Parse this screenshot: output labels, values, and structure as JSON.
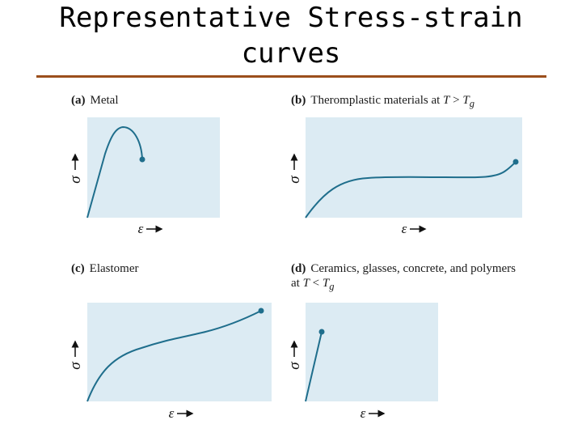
{
  "slide": {
    "title": "Representative Stress-strain\ncurves"
  },
  "panels": [
    {
      "letter": "(a)",
      "label": "Metal",
      "y_axis_symbol": "σ",
      "x_axis_symbol": "ε"
    },
    {
      "letter": "(b)",
      "label_prefix": "Theromplastic materials at ",
      "condition_var": "T",
      "condition_op": " > ",
      "condition_sym": "T",
      "condition_sub": "g",
      "y_axis_symbol": "σ",
      "x_axis_symbol": "ε"
    },
    {
      "letter": "(c)",
      "label": "Elastomer",
      "y_axis_symbol": "σ",
      "x_axis_symbol": "ε"
    },
    {
      "letter": "(d)",
      "label_line1": "Ceramics, glasses, concrete, and polymers",
      "label_line2_prefix": "at ",
      "condition_var": "T",
      "condition_op": " < ",
      "condition_sym": "T",
      "condition_sub": "g",
      "y_axis_symbol": "σ",
      "x_axis_symbol": "ε"
    }
  ],
  "colors": {
    "plot_background": "#dcebf3",
    "curve": "#1f6e8c",
    "title_rule": "#9b4f1c"
  }
}
